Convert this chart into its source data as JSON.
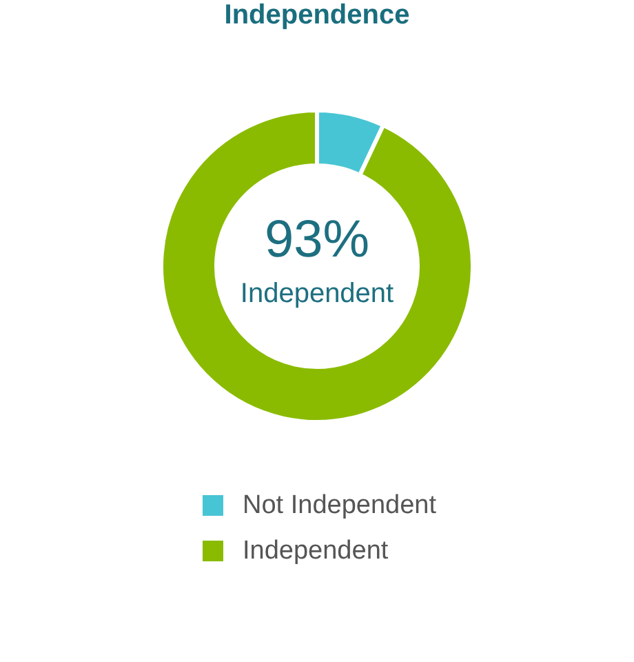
{
  "chart_data": {
    "type": "donut",
    "title": "Independence",
    "categories": [
      "Not Independent",
      "Independent"
    ],
    "values": [
      7,
      93
    ],
    "colors": [
      "#48c5d4",
      "#8abb00"
    ],
    "annotations": [
      "93%",
      "Independent"
    ],
    "legend": "bottom"
  }
}
